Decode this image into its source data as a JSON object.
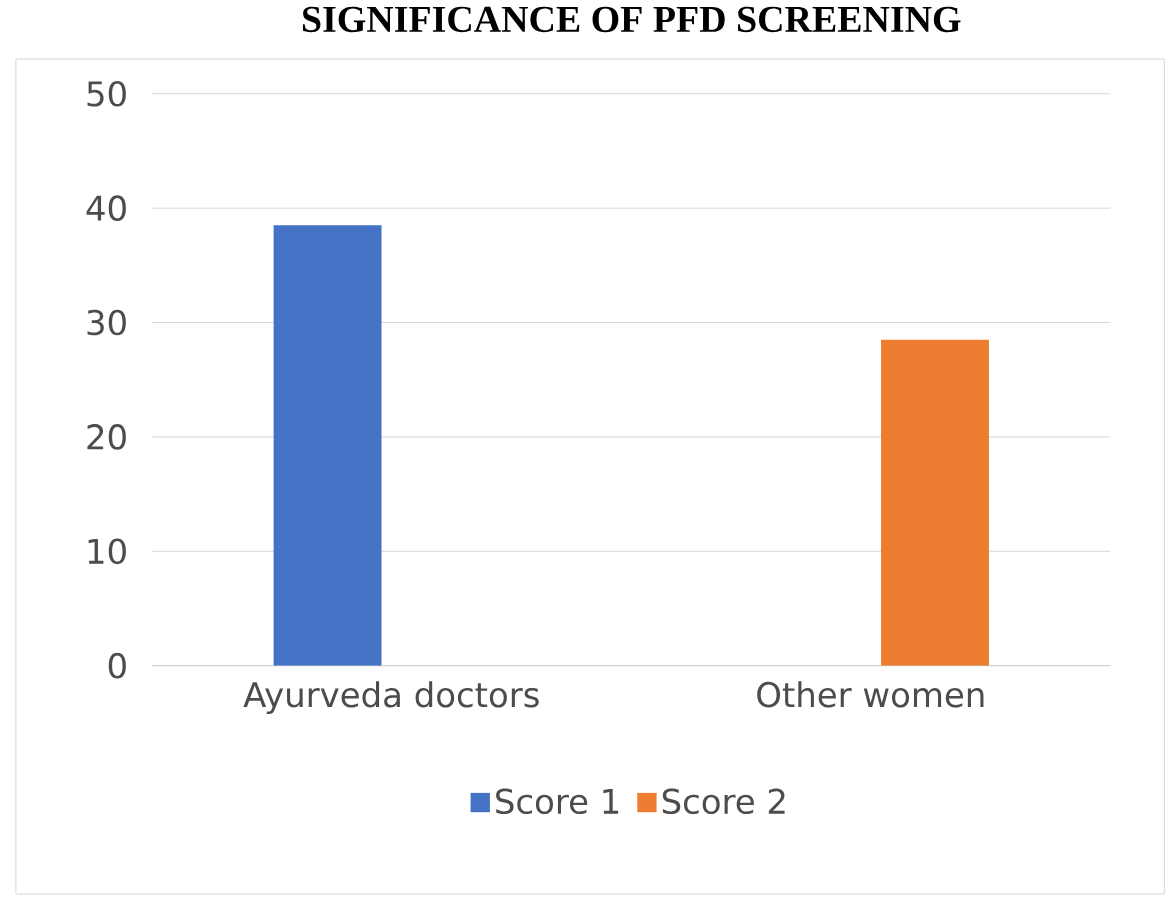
{
  "chart_data": {
    "type": "bar",
    "title": "SIGNIFICANCE OF PFD SCREENING",
    "categories": [
      "Ayurveda doctors",
      "Other women"
    ],
    "series": [
      {
        "name": "Score 1",
        "color": "#4472c4",
        "values": [
          38.5,
          null
        ]
      },
      {
        "name": "Score 2",
        "color": "#ed7d31",
        "values": [
          null,
          28.5
        ]
      }
    ],
    "ylim": [
      0,
      50
    ],
    "yticks": [
      0,
      10,
      20,
      30,
      40,
      50
    ],
    "grid": "y",
    "legend": "bottom"
  }
}
